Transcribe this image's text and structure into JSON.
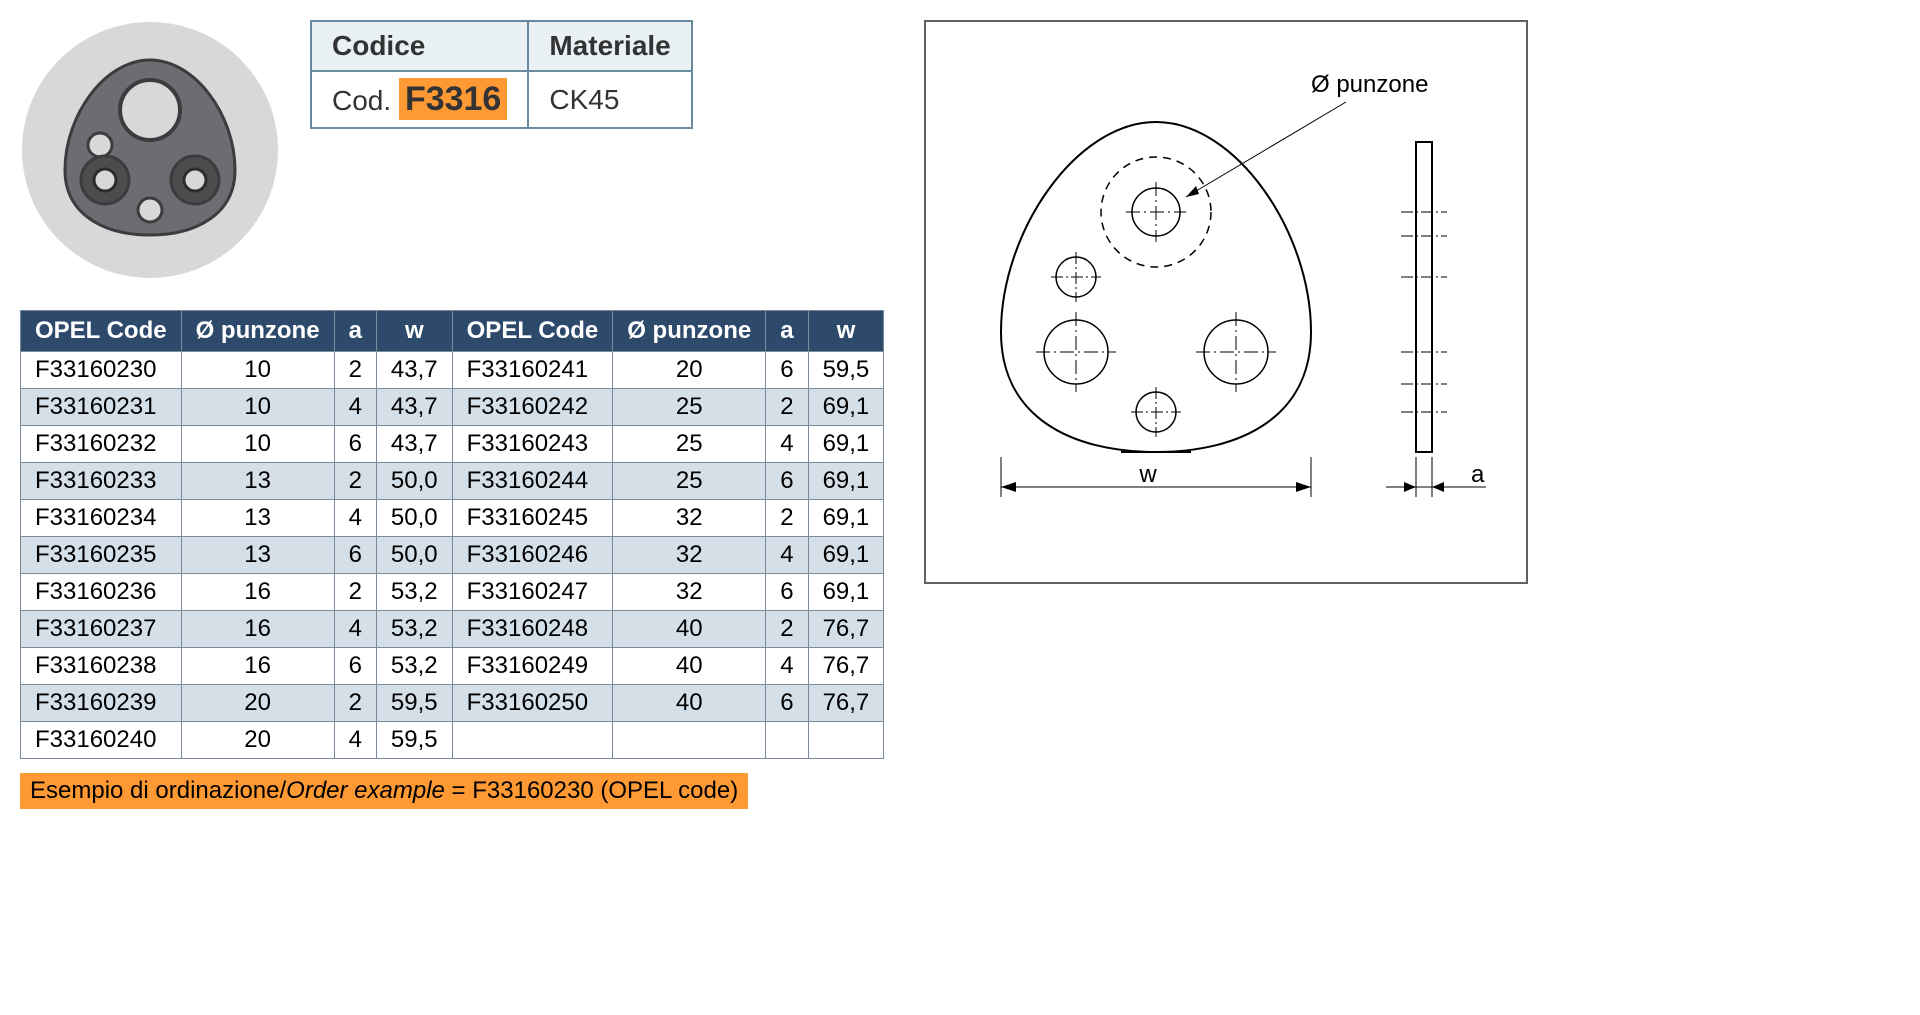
{
  "info_table": {
    "headers": [
      "Codice",
      "Materiale"
    ],
    "code_prefix": "Cod.",
    "code_value": "F3316",
    "material": "CK45"
  },
  "photo": {
    "bg_color": "#d7d8da",
    "part_color": "#6b6d70",
    "hole_color": "#ffffff",
    "shadow_color": "#3a3c3e"
  },
  "data_table": {
    "headers": [
      "OPEL Code",
      "Ø punzone",
      "a",
      "w",
      "OPEL Code",
      "Ø punzone",
      "a",
      "w"
    ],
    "rows": [
      {
        "c1": "F33160230",
        "p1": "10",
        "a1": "2",
        "w1": "43,7",
        "c2": "F33160241",
        "p2": "20",
        "a2": "6",
        "w2": "59,5",
        "alt": false
      },
      {
        "c1": "F33160231",
        "p1": "10",
        "a1": "4",
        "w1": "43,7",
        "c2": "F33160242",
        "p2": "25",
        "a2": "2",
        "w2": "69,1",
        "alt": true
      },
      {
        "c1": "F33160232",
        "p1": "10",
        "a1": "6",
        "w1": "43,7",
        "c2": "F33160243",
        "p2": "25",
        "a2": "4",
        "w2": "69,1",
        "alt": false
      },
      {
        "c1": "F33160233",
        "p1": "13",
        "a1": "2",
        "w1": "50,0",
        "c2": "F33160244",
        "p2": "25",
        "a2": "6",
        "w2": "69,1",
        "alt": true
      },
      {
        "c1": "F33160234",
        "p1": "13",
        "a1": "4",
        "w1": "50,0",
        "c2": "F33160245",
        "p2": "32",
        "a2": "2",
        "w2": "69,1",
        "alt": false
      },
      {
        "c1": "F33160235",
        "p1": "13",
        "a1": "6",
        "w1": "50,0",
        "c2": "F33160246",
        "p2": "32",
        "a2": "4",
        "w2": "69,1",
        "alt": true
      },
      {
        "c1": "F33160236",
        "p1": "16",
        "a1": "2",
        "w1": "53,2",
        "c2": "F33160247",
        "p2": "32",
        "a2": "6",
        "w2": "69,1",
        "alt": false
      },
      {
        "c1": "F33160237",
        "p1": "16",
        "a1": "4",
        "w1": "53,2",
        "c2": "F33160248",
        "p2": "40",
        "a2": "2",
        "w2": "76,7",
        "alt": true
      },
      {
        "c1": "F33160238",
        "p1": "16",
        "a1": "6",
        "w1": "53,2",
        "c2": "F33160249",
        "p2": "40",
        "a2": "4",
        "w2": "76,7",
        "alt": false
      },
      {
        "c1": "F33160239",
        "p1": "20",
        "a1": "2",
        "w1": "59,5",
        "c2": "F33160250",
        "p2": "40",
        "a2": "6",
        "w2": "76,7",
        "alt": true
      },
      {
        "c1": "F33160240",
        "p1": "20",
        "a1": "4",
        "w1": "59,5",
        "c2": "",
        "p2": "",
        "a2": "",
        "w2": "",
        "alt": false
      }
    ]
  },
  "order_example": {
    "label_it": "Esempio di ordinazione/",
    "label_en": "Order example",
    "value": " = F33160230 (OPEL code)"
  },
  "drawing": {
    "label_punzone": "Ø punzone",
    "label_w": "w",
    "label_a": "a",
    "stroke": "#000000",
    "thin_stroke": "#404040",
    "font_size": 24
  }
}
